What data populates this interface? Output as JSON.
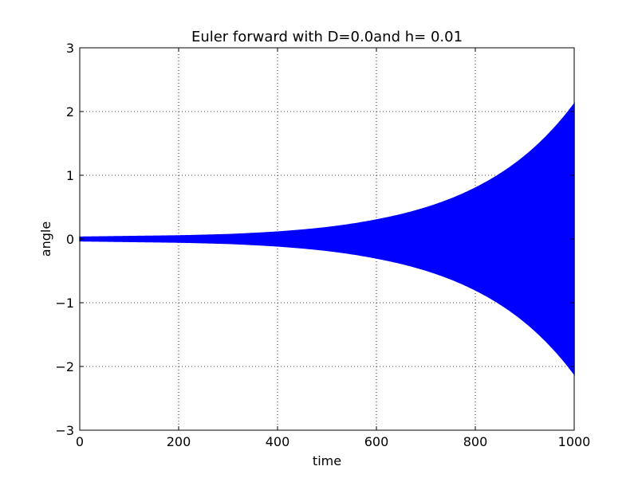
{
  "chart_data": {
    "type": "area",
    "title": "Euler forward with D=0.0and h= 0.01",
    "xlabel": "time",
    "ylabel": "angle",
    "xlim": [
      0,
      1000
    ],
    "ylim": [
      -3,
      3
    ],
    "x_ticks": [
      0,
      200,
      400,
      600,
      800,
      1000
    ],
    "y_ticks": [
      -3,
      -2,
      -1,
      0,
      1,
      2,
      3
    ],
    "x_tick_labels": [
      "0",
      "200",
      "400",
      "600",
      "800",
      "1000"
    ],
    "y_tick_labels": [
      "−3",
      "−2",
      "−1",
      "0",
      "1",
      "2",
      "3"
    ],
    "grid": true,
    "legend": "none",
    "series": [
      {
        "color": "#0000ff",
        "style": "rapidly oscillating line, symmetric growing envelope",
        "envelope": {
          "x": [
            0,
            100,
            200,
            300,
            400,
            500,
            600,
            700,
            800,
            900,
            1000
          ],
          "upper": [
            0.03,
            0.04,
            0.05,
            0.07,
            0.11,
            0.18,
            0.3,
            0.49,
            0.8,
            1.3,
            2.12
          ],
          "lower": [
            -0.03,
            -0.04,
            -0.05,
            -0.07,
            -0.11,
            -0.18,
            -0.3,
            -0.49,
            -0.8,
            -1.3,
            -2.12
          ]
        }
      }
    ]
  }
}
